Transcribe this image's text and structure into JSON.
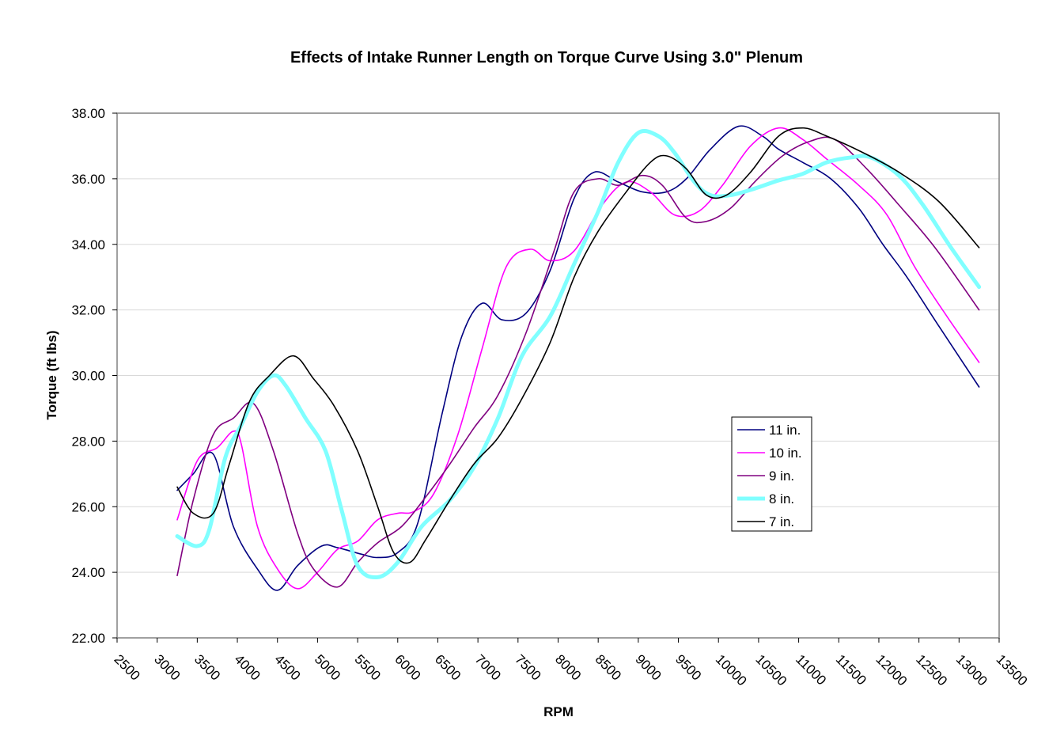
{
  "chart_data": {
    "type": "line",
    "title": "Effects of Intake Runner Length on Torque Curve Using 3.0\" Plenum",
    "xlabel": "RPM",
    "ylabel": "Torque (ft lbs)",
    "xlim": [
      2500,
      13500
    ],
    "ylim": [
      22,
      38
    ],
    "x_ticks": [
      2500,
      3000,
      3500,
      4000,
      4500,
      5000,
      5500,
      6000,
      6500,
      7000,
      7500,
      8000,
      8500,
      9000,
      9500,
      10000,
      10500,
      11000,
      11500,
      12000,
      12500,
      13000,
      13500
    ],
    "y_ticks": [
      "22.00",
      "24.00",
      "26.00",
      "28.00",
      "30.00",
      "32.00",
      "34.00",
      "36.00",
      "38.00"
    ],
    "grid": "horizontal",
    "legend_position": "right-center",
    "series": [
      {
        "name": "11 in.",
        "color": "#000080",
        "width": 1.6,
        "points": [
          [
            3000,
            26.5
          ],
          [
            3200,
            27.0
          ],
          [
            3450,
            27.6
          ],
          [
            3700,
            25.4
          ],
          [
            4000,
            24.1
          ],
          [
            4250,
            23.45
          ],
          [
            4500,
            24.2
          ],
          [
            4800,
            24.8
          ],
          [
            5000,
            24.75
          ],
          [
            5300,
            24.55
          ],
          [
            5500,
            24.45
          ],
          [
            5750,
            24.6
          ],
          [
            6000,
            25.5
          ],
          [
            6300,
            28.8
          ],
          [
            6550,
            31.2
          ],
          [
            6800,
            32.2
          ],
          [
            7050,
            31.7
          ],
          [
            7350,
            31.9
          ],
          [
            7650,
            33.2
          ],
          [
            7950,
            35.4
          ],
          [
            8200,
            36.2
          ],
          [
            8500,
            35.9
          ],
          [
            8800,
            35.6
          ],
          [
            9100,
            35.6
          ],
          [
            9350,
            36.0
          ],
          [
            9650,
            36.9
          ],
          [
            10000,
            37.6
          ],
          [
            10300,
            37.3
          ],
          [
            10500,
            36.9
          ],
          [
            10800,
            36.5
          ],
          [
            11150,
            36.0
          ],
          [
            11500,
            35.1
          ],
          [
            11800,
            34.0
          ],
          [
            12100,
            33.0
          ],
          [
            12500,
            31.5
          ],
          [
            13000,
            29.65
          ]
        ]
      },
      {
        "name": "10 in.",
        "color": "#FF00FF",
        "width": 1.6,
        "points": [
          [
            3000,
            25.6
          ],
          [
            3250,
            27.4
          ],
          [
            3500,
            27.8
          ],
          [
            3700,
            28.3
          ],
          [
            3800,
            27.9
          ],
          [
            4000,
            25.4
          ],
          [
            4250,
            24.1
          ],
          [
            4500,
            23.5
          ],
          [
            4750,
            24.0
          ],
          [
            5000,
            24.7
          ],
          [
            5250,
            24.95
          ],
          [
            5500,
            25.6
          ],
          [
            5750,
            25.8
          ],
          [
            5950,
            25.85
          ],
          [
            6200,
            26.4
          ],
          [
            6500,
            28.2
          ],
          [
            6800,
            30.8
          ],
          [
            7100,
            33.3
          ],
          [
            7400,
            33.85
          ],
          [
            7650,
            33.5
          ],
          [
            7950,
            33.8
          ],
          [
            8300,
            35.2
          ],
          [
            8600,
            35.9
          ],
          [
            8900,
            35.6
          ],
          [
            9200,
            34.9
          ],
          [
            9500,
            35.0
          ],
          [
            9800,
            35.8
          ],
          [
            10150,
            37.0
          ],
          [
            10500,
            37.55
          ],
          [
            10800,
            37.2
          ],
          [
            11100,
            36.6
          ],
          [
            11500,
            35.8
          ],
          [
            11850,
            34.9
          ],
          [
            12200,
            33.3
          ],
          [
            12600,
            31.8
          ],
          [
            13000,
            30.4
          ]
        ]
      },
      {
        "name": "9 in.",
        "color": "#800080",
        "width": 1.6,
        "points": [
          [
            3000,
            23.9
          ],
          [
            3200,
            26.2
          ],
          [
            3450,
            28.2
          ],
          [
            3700,
            28.7
          ],
          [
            3950,
            29.15
          ],
          [
            4200,
            27.7
          ],
          [
            4500,
            25.2
          ],
          [
            4700,
            24.1
          ],
          [
            5000,
            23.55
          ],
          [
            5250,
            24.3
          ],
          [
            5500,
            24.9
          ],
          [
            5800,
            25.4
          ],
          [
            6100,
            26.3
          ],
          [
            6400,
            27.3
          ],
          [
            6700,
            28.4
          ],
          [
            7000,
            29.4
          ],
          [
            7350,
            31.3
          ],
          [
            7700,
            33.8
          ],
          [
            7950,
            35.6
          ],
          [
            8250,
            36.0
          ],
          [
            8500,
            35.8
          ],
          [
            8800,
            36.1
          ],
          [
            9050,
            35.8
          ],
          [
            9350,
            34.8
          ],
          [
            9600,
            34.7
          ],
          [
            9900,
            35.1
          ],
          [
            10200,
            35.9
          ],
          [
            10550,
            36.7
          ],
          [
            10900,
            37.15
          ],
          [
            11200,
            37.2
          ],
          [
            11600,
            36.3
          ],
          [
            12000,
            35.2
          ],
          [
            12450,
            33.9
          ],
          [
            13000,
            32.0
          ]
        ]
      },
      {
        "name": "8 in.",
        "color": "#80FFFF",
        "width": 5,
        "points": [
          [
            3000,
            25.1
          ],
          [
            3250,
            24.8
          ],
          [
            3400,
            25.3
          ],
          [
            3600,
            27.5
          ],
          [
            3800,
            28.5
          ],
          [
            4000,
            29.5
          ],
          [
            4200,
            30.0
          ],
          [
            4350,
            29.7
          ],
          [
            4600,
            28.7
          ],
          [
            4850,
            27.7
          ],
          [
            5050,
            25.9
          ],
          [
            5250,
            24.2
          ],
          [
            5500,
            23.85
          ],
          [
            5750,
            24.3
          ],
          [
            6050,
            25.4
          ],
          [
            6400,
            26.2
          ],
          [
            6700,
            27.2
          ],
          [
            7000,
            28.7
          ],
          [
            7300,
            30.6
          ],
          [
            7650,
            31.8
          ],
          [
            7950,
            33.4
          ],
          [
            8250,
            35.0
          ],
          [
            8500,
            36.5
          ],
          [
            8750,
            37.4
          ],
          [
            9000,
            37.3
          ],
          [
            9200,
            36.8
          ],
          [
            9450,
            35.9
          ],
          [
            9650,
            35.5
          ],
          [
            9900,
            35.5
          ],
          [
            10200,
            35.7
          ],
          [
            10500,
            35.95
          ],
          [
            10800,
            36.15
          ],
          [
            11100,
            36.5
          ],
          [
            11400,
            36.65
          ],
          [
            11650,
            36.65
          ],
          [
            12000,
            36.1
          ],
          [
            12300,
            35.2
          ],
          [
            12650,
            33.9
          ],
          [
            13000,
            32.7
          ]
        ]
      },
      {
        "name": "7 in.",
        "color": "#000000",
        "width": 1.6,
        "points": [
          [
            3000,
            26.6
          ],
          [
            3200,
            25.8
          ],
          [
            3450,
            25.8
          ],
          [
            3650,
            27.3
          ],
          [
            3900,
            29.2
          ],
          [
            4150,
            30.0
          ],
          [
            4450,
            30.6
          ],
          [
            4700,
            29.9
          ],
          [
            4950,
            29.1
          ],
          [
            5250,
            27.7
          ],
          [
            5500,
            26.0
          ],
          [
            5700,
            24.6
          ],
          [
            5900,
            24.3
          ],
          [
            6100,
            25.0
          ],
          [
            6400,
            26.2
          ],
          [
            6700,
            27.3
          ],
          [
            7000,
            28.1
          ],
          [
            7300,
            29.3
          ],
          [
            7650,
            31.0
          ],
          [
            7950,
            33.0
          ],
          [
            8250,
            34.4
          ],
          [
            8600,
            35.6
          ],
          [
            8900,
            36.5
          ],
          [
            9100,
            36.7
          ],
          [
            9350,
            36.3
          ],
          [
            9600,
            35.5
          ],
          [
            9850,
            35.5
          ],
          [
            10150,
            36.2
          ],
          [
            10500,
            37.3
          ],
          [
            10800,
            37.55
          ],
          [
            11100,
            37.3
          ],
          [
            11550,
            36.8
          ],
          [
            12000,
            36.2
          ],
          [
            12500,
            35.3
          ],
          [
            13000,
            33.9
          ]
        ]
      }
    ]
  }
}
